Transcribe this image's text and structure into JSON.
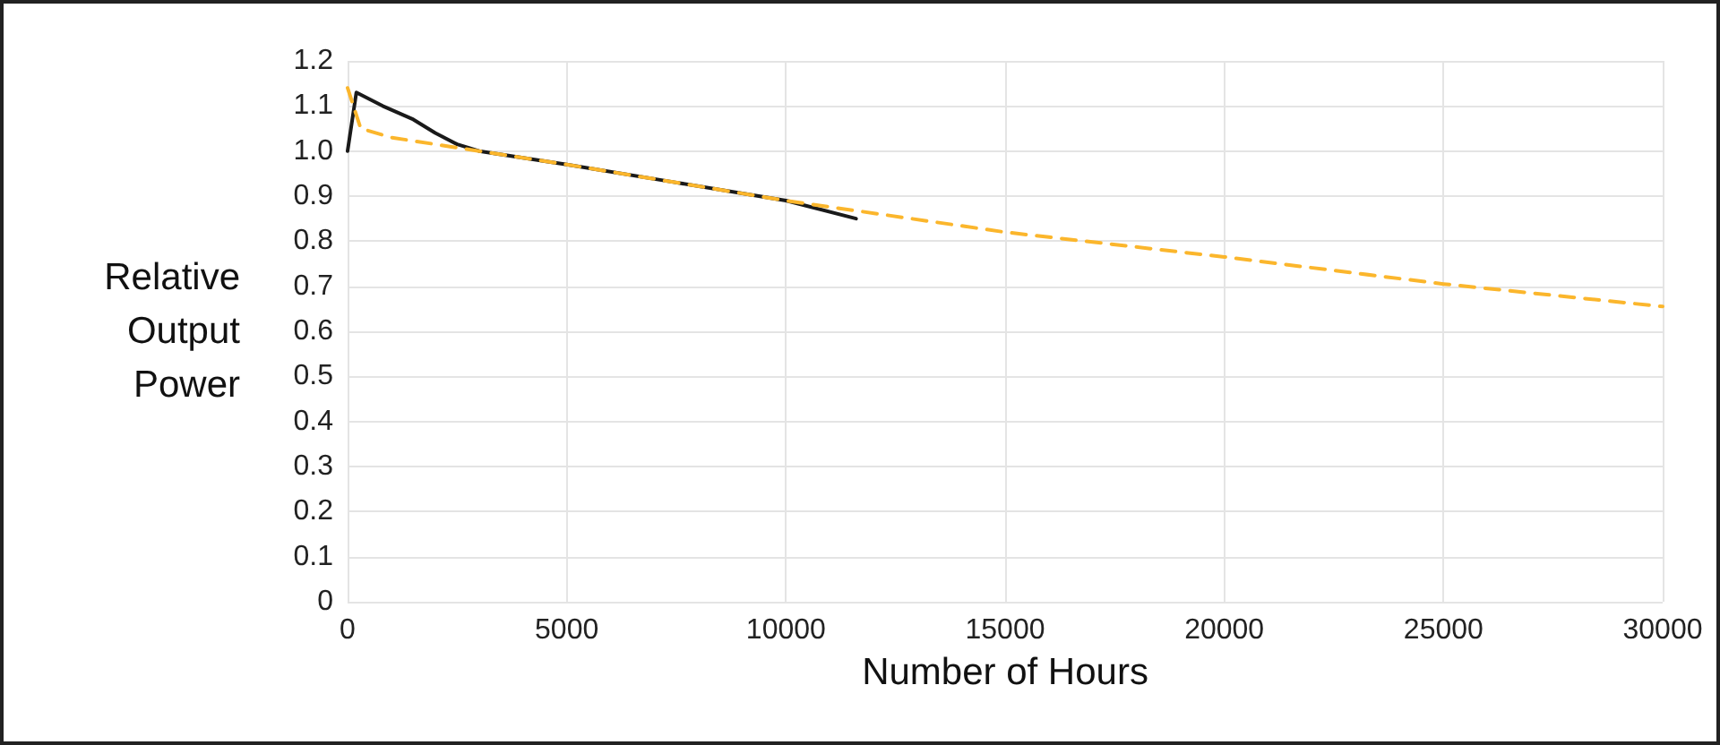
{
  "chart_data": {
    "type": "line",
    "xlabel": "Number of Hours",
    "ylabel": "Relative Output Power",
    "xlim": [
      0,
      30000
    ],
    "xticks": [
      0,
      5000,
      10000,
      15000,
      20000,
      25000,
      30000
    ],
    "ylim": [
      0,
      1.2
    ],
    "yticks": [
      0,
      0.1,
      0.2,
      0.3,
      0.4,
      0.5,
      0.6,
      0.7,
      0.8,
      0.9,
      {
        "value": 1,
        "label": "1.0"
      },
      1.1,
      1.2
    ],
    "grid": true,
    "marker": "none",
    "series": [
      {
        "color": "#1a1a1a",
        "line_style": "solid",
        "x": [
          0,
          200,
          800,
          1500,
          2000,
          2500,
          3000,
          5000,
          7500,
          10000,
          11600
        ],
        "values": [
          1.0,
          1.13,
          1.1,
          1.07,
          1.04,
          1.015,
          1.0,
          0.97,
          0.93,
          0.89,
          0.85
        ]
      },
      {
        "color": "#fbb62c",
        "line_style": "dashed",
        "x": [
          0,
          300,
          1000,
          3000,
          5000,
          10000,
          15000,
          20000,
          25000,
          30000
        ],
        "values": [
          1.14,
          1.05,
          1.03,
          1.0,
          0.97,
          0.89,
          0.82,
          0.765,
          0.705,
          0.655
        ]
      }
    ]
  }
}
